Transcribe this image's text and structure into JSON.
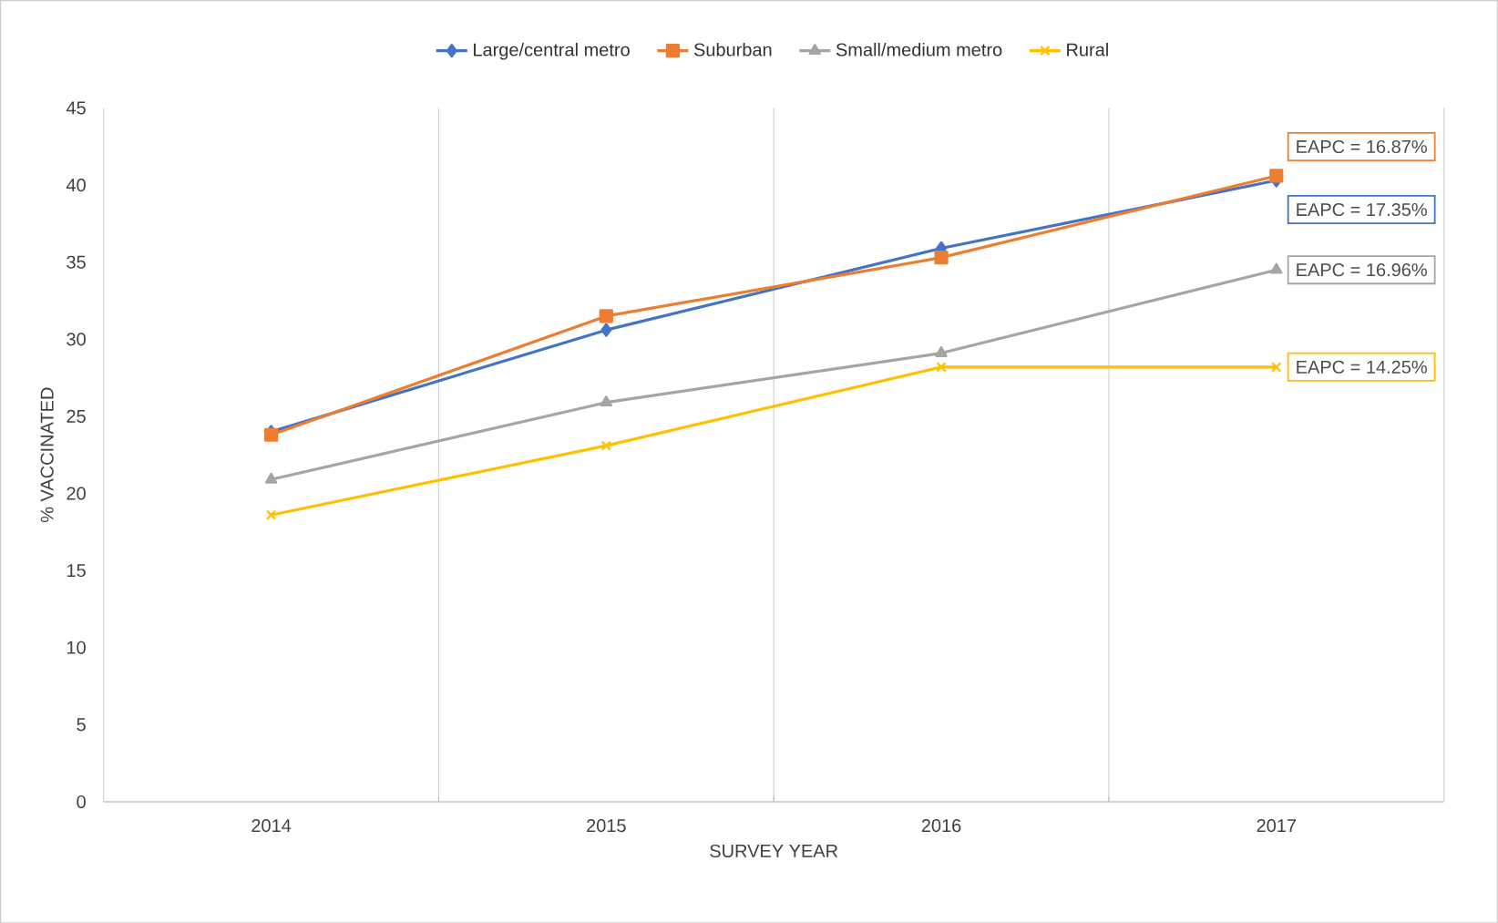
{
  "chart_data": {
    "type": "line",
    "xlabel": "SURVEY YEAR",
    "ylabel": "% VACCINATED",
    "categories": [
      "2014",
      "2015",
      "2016",
      "2017"
    ],
    "series": [
      {
        "name": "Large/central metro",
        "color": "#4472c4",
        "marker": "diamond",
        "values": [
          24.0,
          30.6,
          35.9,
          40.3
        ]
      },
      {
        "name": "Suburban",
        "color": "#ed7d31",
        "marker": "square",
        "values": [
          23.8,
          31.5,
          35.3,
          40.6
        ]
      },
      {
        "name": "Small/medium metro",
        "color": "#a5a5a5",
        "marker": "triangle",
        "values": [
          20.9,
          25.9,
          29.1,
          34.5
        ]
      },
      {
        "name": "Rural",
        "color": "#ffc000",
        "marker": "cross",
        "values": [
          18.6,
          23.1,
          28.2,
          28.2
        ]
      }
    ],
    "ylim": [
      0,
      45
    ],
    "yticks": [
      0,
      5,
      10,
      15,
      20,
      25,
      30,
      35,
      40,
      45
    ],
    "grid": "x",
    "legend": "top",
    "line_style": "solid",
    "annotations": [
      {
        "text": "EAPC = 16.87%",
        "x": "2017",
        "y": 40.6
      },
      {
        "text": "EAPC = 17.35%",
        "x": "2017",
        "y": 40.3
      },
      {
        "text": "EAPC = 16.96%",
        "x": "2017",
        "y": 34.5
      },
      {
        "text": "EAPC = 14.25%",
        "x": "2017",
        "y": 28.2
      }
    ]
  }
}
